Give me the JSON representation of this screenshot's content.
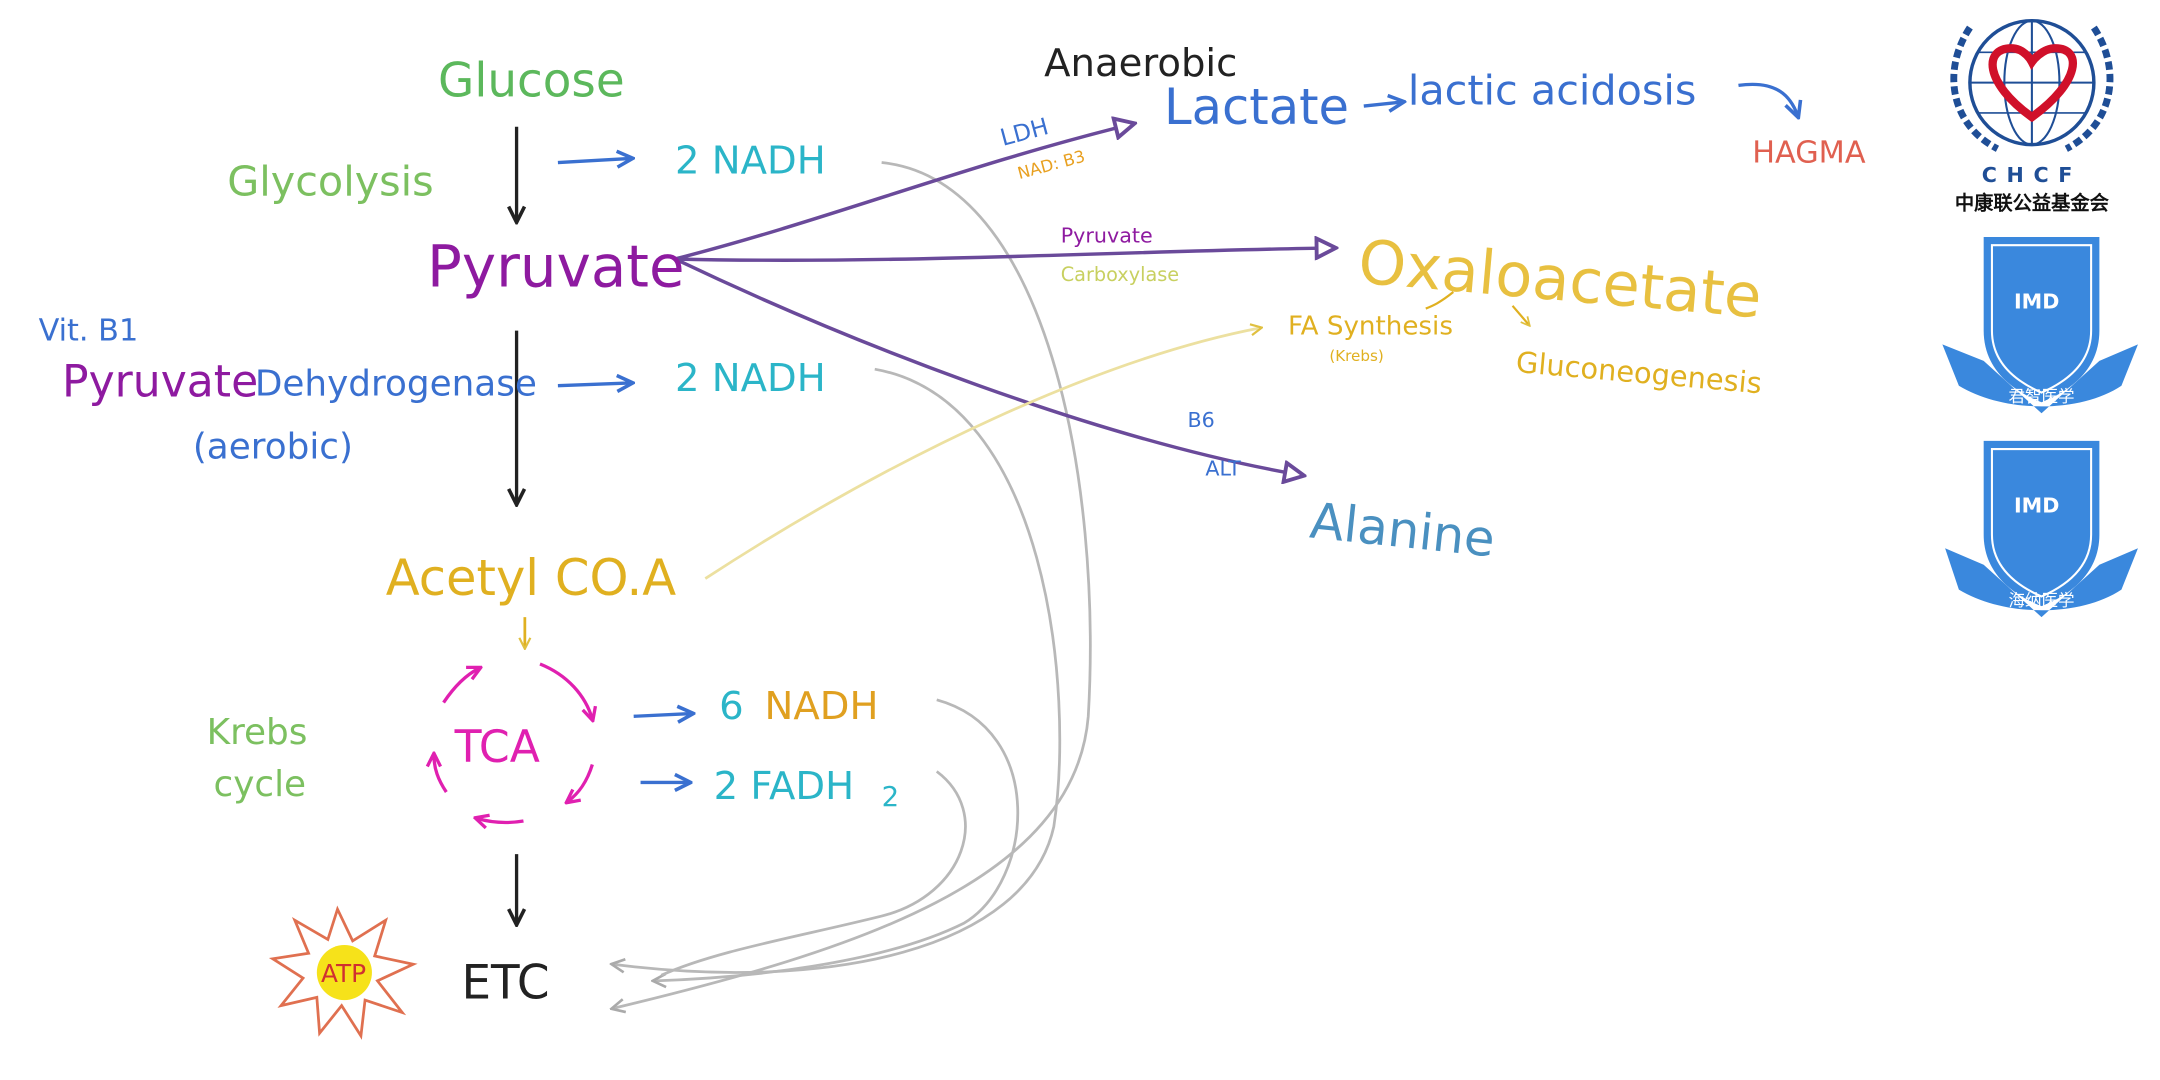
{
  "colors": {
    "green": "#5cb85c",
    "cyan": "#2bb5c8",
    "purple": "#8e1aa0",
    "line_purple": "#6a4a9a",
    "blue": "#3a70d0",
    "light_blue": "#4a90c0",
    "gold": "#e0b020",
    "magenta": "#e020b0",
    "orange": "#e8a020",
    "red": "#e06050",
    "gray": "#b8b8b8",
    "logo_blue": "#3a88dd",
    "logo_navy": "#1f4e96",
    "logo_red": "#d0102a"
  },
  "diagram": {
    "glucose": "Glucose",
    "glycolysis": "Glycolysis",
    "nadh_glycolysis": "2 NADH",
    "pyruvate": "Pyruvate",
    "vit_b1": "Vit. B1",
    "pdh_pyruvate": "Pyruvate",
    "pdh_dehydrogenase": "Dehydrogenase",
    "aerobic": "(aerobic)",
    "nadh_pdh": "2 NADH",
    "acetyl_coa": "Acetyl CO.A",
    "krebs": "Krebs",
    "cycle": "cycle",
    "tca": "TCA",
    "nadh_tca_num": "6",
    "nadh_tca": "NADH",
    "fadh2": "2 FADH",
    "fadh2_sub": "2",
    "atp": "ATP",
    "etc": "ETC",
    "anaerobic": "Anaerobic",
    "ldh": "LDH",
    "nad_b3": "NAD: B3",
    "lactate": "Lactate",
    "lactic_acidosis": "lactic acidosis",
    "hagma": "HAGMA",
    "pc_pyruvate": "Pyruvate",
    "pc_carboxylase": "Carboxylase",
    "oxaloacetate": "Oxaloacetate",
    "fa_synthesis": "FA Synthesis",
    "fa_krebs": "(Krebs)",
    "gluconeogenesis": "Gluconeogenesis",
    "b6": "B6",
    "alt": "ALT",
    "alanine": "Alanine"
  },
  "logos": {
    "chcf_en": "CHCF",
    "chcf_cn": "中康联公益基金会",
    "imd1_text": "IMD",
    "imd1_banner": "君智医学",
    "imd2_text": "IMD",
    "imd2_banner": "海纳医学"
  }
}
